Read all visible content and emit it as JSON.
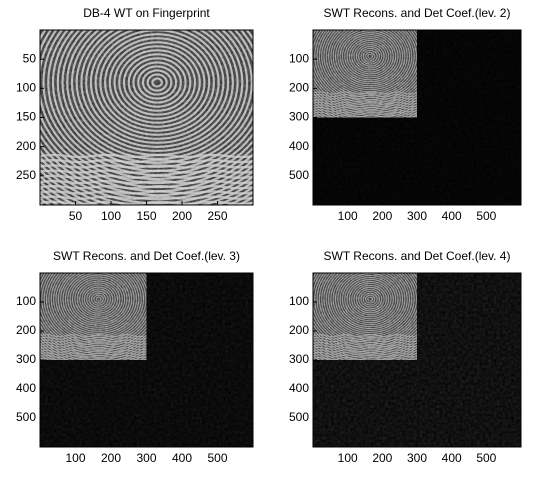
{
  "panels": [
    {
      "title": "DB-4 WT on Fingerprint",
      "xlim": [
        0,
        300
      ],
      "ylim": [
        0,
        300
      ],
      "xticks": [
        50,
        100,
        150,
        200,
        250
      ],
      "yticks": [
        50,
        100,
        150,
        200,
        250
      ],
      "full": true
    },
    {
      "title": "SWT Recons. and Det Coef.(lev. 2)",
      "xlim": [
        0,
        600
      ],
      "ylim": [
        0,
        600
      ],
      "xticks": [
        100,
        200,
        300,
        400,
        500
      ],
      "yticks": [
        100,
        200,
        300,
        400,
        500
      ],
      "full": false
    },
    {
      "title": "SWT Recons. and Det Coef.(lev. 3)",
      "xlim": [
        0,
        600
      ],
      "ylim": [
        0,
        600
      ],
      "xticks": [
        100,
        200,
        300,
        400,
        500
      ],
      "yticks": [
        100,
        200,
        300,
        400,
        500
      ],
      "full": false
    },
    {
      "title": "SWT Recons. and Det Coef.(lev. 4)",
      "xlim": [
        0,
        600
      ],
      "ylim": [
        0,
        600
      ],
      "xticks": [
        100,
        200,
        300,
        400,
        500
      ],
      "yticks": [
        100,
        200,
        300,
        400,
        500
      ],
      "full": false
    }
  ]
}
